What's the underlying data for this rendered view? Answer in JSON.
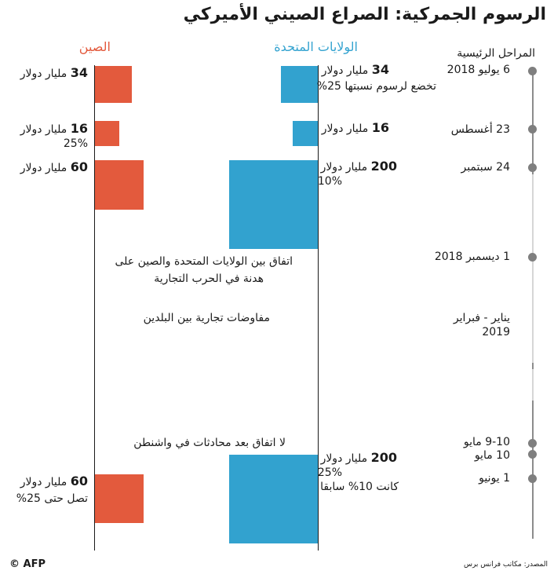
{
  "title": "الرسوم الجمركية: الصراع الصيني الأميركي",
  "columns": {
    "us": "الولايات المتحدة",
    "china": "الصين",
    "phases": "المراحل الرئيسية"
  },
  "colors": {
    "us": "#32a2cf",
    "china": "#e35a3d",
    "timeline": "#7f7f7f"
  },
  "rows": [
    {
      "date": "6 يوليو 2018",
      "us_amount": "34",
      "us_unit": "مليار دولار",
      "us_note": "تخضع لرسوم نسبتها 25%",
      "cn_amount": "34",
      "cn_unit": "مليار دولار",
      "cn_note": ""
    },
    {
      "date": "23 أغسطس",
      "us_amount": "16",
      "us_unit": "مليار دولار",
      "us_note": "",
      "cn_amount": "16",
      "cn_unit": "مليار دولار",
      "cn_note": "25%"
    },
    {
      "date": "24 سبتمبر",
      "us_amount": "200",
      "us_unit": "مليار دولار",
      "us_note": "10%",
      "cn_amount": "60",
      "cn_unit": "مليار دولار",
      "cn_note": ""
    },
    {
      "date": "1 ديسمبر 2018"
    },
    {
      "date_line1": "يناير - فبراير",
      "date_line2": "2019"
    },
    {
      "date": "9-10 مايو"
    },
    {
      "date": "10 مايو"
    },
    {
      "date": "1 يونيو",
      "us_amount": "200",
      "us_unit": "مليار دولار",
      "us_note": "25%",
      "us_note2": "كانت 10% سابقا",
      "cn_amount": "60",
      "cn_unit": "مليار دولار",
      "cn_note": "تصل حتى 25%"
    }
  ],
  "events": {
    "truce_line1": "اتفاق بين الولايات المتحدة والصين على",
    "truce_line2": "هدنة في الحرب التجارية",
    "talks": "مفاوضات تجارية بين البلدين",
    "no_deal": "لا اتفاق بعد محادثات في واشنطن"
  },
  "chart_data": {
    "type": "bar",
    "categories": [
      "6 يوليو 2018",
      "23 أغسطس",
      "24 سبتمبر",
      "1 يونيو"
    ],
    "series": [
      {
        "name": "الولايات المتحدة",
        "values": [
          34,
          16,
          200,
          200
        ]
      },
      {
        "name": "الصين",
        "values": [
          34,
          16,
          60,
          60
        ]
      }
    ]
  },
  "footer": {
    "source": "المصدر: مكاتب فرانس برس",
    "credit": "© AFP"
  }
}
